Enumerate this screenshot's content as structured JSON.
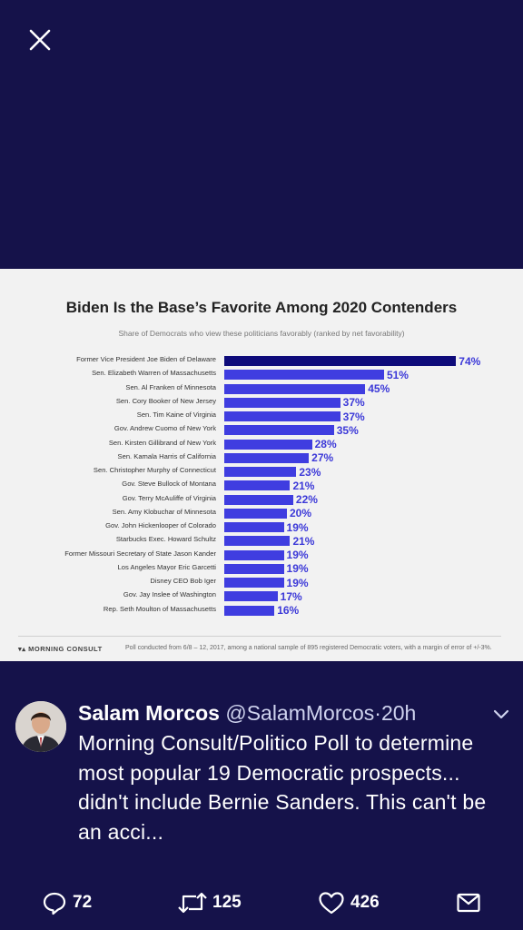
{
  "chart_data": {
    "type": "bar",
    "title": "Biden Is the Base’s Favorite Among 2020 Contenders",
    "subtitle": "Share of Democrats who view these politicians favorably (ranked by net favorability)",
    "categories": [
      "Former Vice President Joe Biden of Delaware",
      "Sen. Elizabeth Warren of Massachusetts",
      "Sen. Al Franken of Minnesota",
      "Sen. Cory Booker of New Jersey",
      "Sen. Tim Kaine of Virginia",
      "Gov. Andrew Cuomo of New York",
      "Sen. Kirsten Gillibrand of New York",
      "Sen. Kamala Harris of California",
      "Sen. Christopher Murphy of Connecticut",
      "Gov. Steve Bullock of Montana",
      "Gov. Terry McAuliffe of Virginia",
      "Sen. Amy Klobuchar of Minnesota",
      "Gov. John Hickenlooper of Colorado",
      "Starbucks Exec. Howard Schultz",
      "Former Missouri Secretary of State Jason Kander",
      "Los Angeles Mayor Eric Garcetti",
      "Disney CEO Bob Iger",
      "Gov. Jay Inslee of Washington",
      "Rep. Seth Moulton of Massachusetts"
    ],
    "values": [
      74,
      51,
      45,
      37,
      37,
      35,
      28,
      27,
      23,
      21,
      22,
      20,
      19,
      21,
      19,
      19,
      19,
      17,
      16
    ],
    "value_labels": [
      "74%",
      "51%",
      "45%",
      "37%",
      "37%",
      "35%",
      "28%",
      "27%",
      "23%",
      "21%",
      "22%",
      "20%",
      "19%",
      "21%",
      "19%",
      "19%",
      "19%",
      "17%",
      "16%"
    ],
    "colors": {
      "highlight": "#0e0b7a",
      "bar": "#3f3de0",
      "label": "#3c39d8"
    },
    "grid": false,
    "xlabel": "",
    "ylabel": ""
  },
  "chart_footer": {
    "logo": "MORNING CONSULT",
    "note": "Poll conducted from 6/8 – 12, 2017, among a national sample of 895 registered Democratic voters, with a margin of error of +/-3%."
  },
  "tweet": {
    "name": "Salam Morcos",
    "handle": "@SalamMorcos",
    "separator": "·",
    "time": "20h",
    "text": "Morning Consult/Politico Poll to determine most popular 19 Democratic prospects... didn't include Bernie Sanders. This can't be an acci...",
    "replies": "72",
    "retweets": "125",
    "likes": "426"
  },
  "icons": [
    "close-icon",
    "chevron-down-icon",
    "reply-icon",
    "retweet-icon",
    "like-icon",
    "share-mail-icon"
  ],
  "theme": {
    "background": "#15124a",
    "text": "#ffffff"
  }
}
